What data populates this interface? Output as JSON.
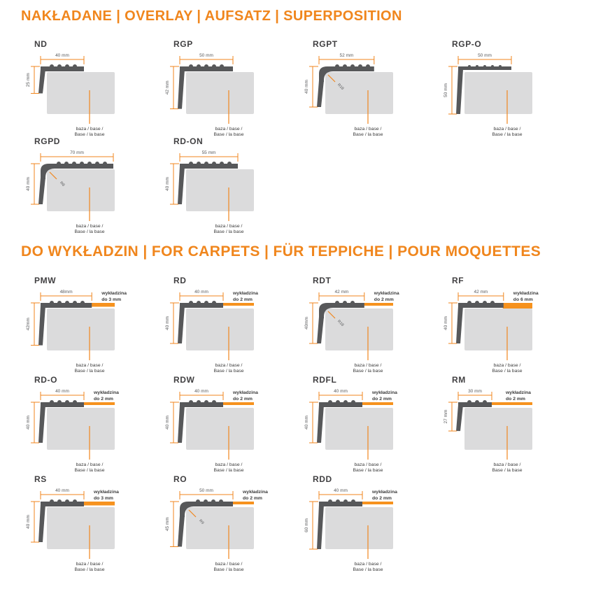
{
  "colors": {
    "accent": "#F0861D",
    "carpet_strip": "#F6921E",
    "profile": "#57585A",
    "base": "#DBDBDC",
    "name_text": "#414042",
    "dim_text": "#58595B",
    "label_text": "#3B3B3B"
  },
  "sections": [
    {
      "title": "NAKŁADANE | OVERLAY | AUFSATZ | SUPERPOSITION",
      "base_label_line1": "baza / base /",
      "base_label_line2": "Base / la base",
      "profiles": [
        {
          "name": "ND",
          "width_label": "40 mm",
          "height_label": "25 mm",
          "width_mm": 40,
          "height_mm": 25
        },
        {
          "name": "RGP",
          "width_label": "50 mm",
          "height_label": "42 mm",
          "width_mm": 50,
          "height_mm": 42
        },
        {
          "name": "RGPT",
          "width_label": "52 mm",
          "height_label": "40 mm",
          "width_mm": 52,
          "height_mm": 40,
          "radius_label": "R18",
          "corner": "round"
        },
        {
          "name": "RGP-O",
          "width_label": "50 mm",
          "height_label": "50 mm",
          "width_mm": 50,
          "height_mm": 50,
          "corner": "flat"
        },
        {
          "name": "RGPD",
          "width_label": "70 mm",
          "height_label": "40 mm",
          "width_mm": 70,
          "height_mm": 40,
          "radius_label": "R8",
          "corner": "round"
        },
        {
          "name": "RD-ON",
          "width_label": "55 mm",
          "height_label": "40 mm",
          "width_mm": 55,
          "height_mm": 40
        }
      ]
    },
    {
      "title": "DO WYKŁADZIN | FOR CARPETS | FÜR TEPPICHE | POUR MOQUETTES",
      "base_label_line1": "baza / base /",
      "base_label_line2": "Base / la base",
      "profiles": [
        {
          "name": "PMW",
          "width_label": "48mm",
          "height_label": "42mm",
          "width_mm": 48,
          "height_mm": 42,
          "carpet_line1": "wykładzina",
          "carpet_line2": "do 3 mm",
          "carpet_mm": 3
        },
        {
          "name": "RD",
          "width_label": "40 mm",
          "height_label": "40 mm",
          "width_mm": 40,
          "height_mm": 40,
          "carpet_line1": "wykładzina",
          "carpet_line2": "do 2 mm",
          "carpet_mm": 2
        },
        {
          "name": "RDT",
          "width_label": "42 mm",
          "height_label": "40mm",
          "width_mm": 42,
          "height_mm": 40,
          "carpet_line1": "wykładzina",
          "carpet_line2": "do 2 mm",
          "carpet_mm": 2,
          "radius_label": "R18",
          "corner": "round"
        },
        {
          "name": "RF",
          "width_label": "42 mm",
          "height_label": "40 mm",
          "width_mm": 42,
          "height_mm": 40,
          "carpet_line1": "wykładzina",
          "carpet_line2": "do 6 mm",
          "carpet_mm": 6
        },
        {
          "name": "RD-O",
          "width_label": "40 mm",
          "height_label": "40 mm",
          "width_mm": 40,
          "height_mm": 40,
          "carpet_line1": "wykładzina",
          "carpet_line2": "do 2 mm",
          "carpet_mm": 2
        },
        {
          "name": "RDW",
          "width_label": "40 mm",
          "height_label": "40 mm",
          "width_mm": 40,
          "height_mm": 40,
          "carpet_line1": "wykładzina",
          "carpet_line2": "do 2 mm",
          "carpet_mm": 2
        },
        {
          "name": "RDFL",
          "width_label": "40 mm",
          "height_label": "40 mm",
          "width_mm": 40,
          "height_mm": 40,
          "carpet_line1": "wykładzina",
          "carpet_line2": "do 2 mm",
          "carpet_mm": 2
        },
        {
          "name": "RM",
          "width_label": "30 mm",
          "height_label": "27 mm",
          "width_mm": 30,
          "height_mm": 27,
          "carpet_line1": "wykładzina",
          "carpet_line2": "do 2 mm",
          "carpet_mm": 2
        },
        {
          "name": "RS",
          "width_label": "40 mm",
          "height_label": "40 mm",
          "width_mm": 40,
          "height_mm": 40,
          "carpet_line1": "wykładzina",
          "carpet_line2": "do 3 mm",
          "carpet_mm": 3
        },
        {
          "name": "RO",
          "width_label": "50 mm",
          "height_label": "45 mm",
          "width_mm": 50,
          "height_mm": 45,
          "carpet_line1": "wykładzina",
          "carpet_line2": "do 2 mm",
          "carpet_mm": 2,
          "radius_label": "R9",
          "corner": "round"
        },
        {
          "name": "RDD",
          "width_label": "40 mm",
          "height_label": "60 mm",
          "width_mm": 40,
          "height_mm": 60,
          "carpet_line1": "wykładzina",
          "carpet_line2": "do 2 mm",
          "carpet_mm": 2
        }
      ]
    }
  ]
}
